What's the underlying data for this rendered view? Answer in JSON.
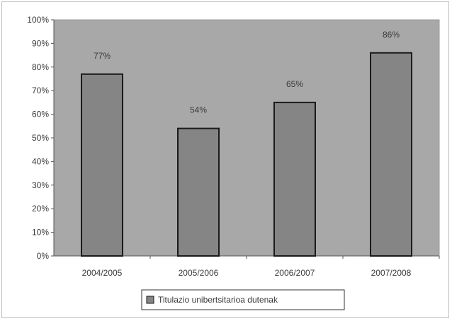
{
  "chart_data": {
    "type": "bar",
    "categories": [
      "2004/2005",
      "2005/2006",
      "2006/2007",
      "2007/2008"
    ],
    "series": [
      {
        "name": "Titulazio unibertsitarioa dutenak",
        "values": [
          77,
          54,
          65,
          86
        ],
        "value_labels": [
          "77%",
          "54%",
          "65%",
          "86%"
        ]
      }
    ],
    "ylim": [
      0,
      100
    ],
    "yticks": [
      0,
      10,
      20,
      30,
      40,
      50,
      60,
      70,
      80,
      90,
      100
    ],
    "ytick_labels": [
      "0%",
      "10%",
      "20%",
      "30%",
      "40%",
      "50%",
      "60%",
      "70%",
      "80%",
      "90%",
      "100%"
    ],
    "grid": false,
    "legend_position": "bottom-center",
    "colors": {
      "plot_background": "#a8a8a8",
      "bar_fill": "#858585",
      "bar_stroke": "#1a1a1a",
      "axis": "#555555"
    }
  }
}
